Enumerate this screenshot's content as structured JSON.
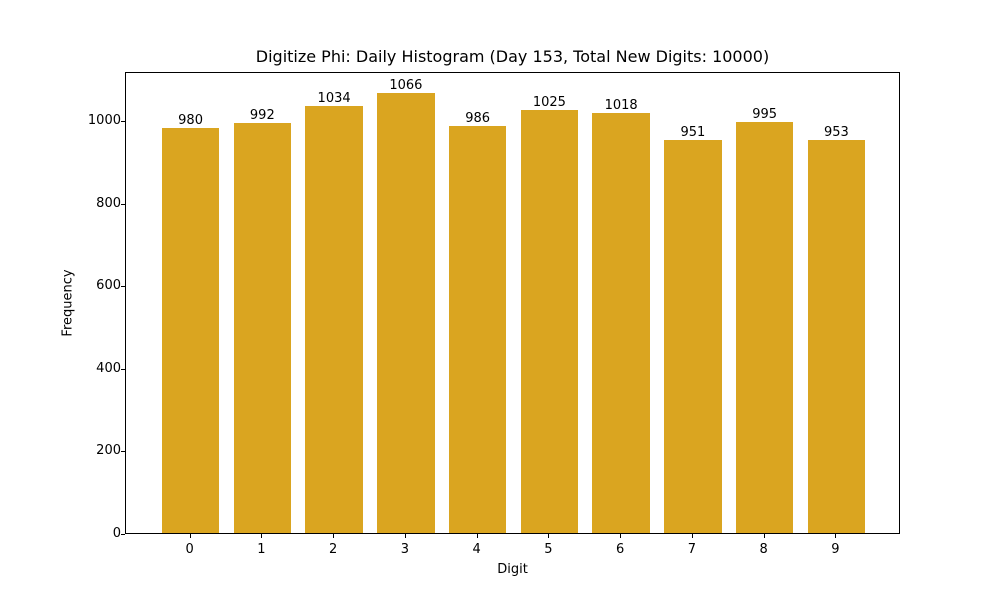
{
  "chart_data": {
    "type": "bar",
    "title": "Digitize Phi: Daily Histogram (Day 153, Total New Digits: 10000)",
    "xlabel": "Digit",
    "ylabel": "Frequency",
    "categories": [
      "0",
      "1",
      "2",
      "3",
      "4",
      "5",
      "6",
      "7",
      "8",
      "9"
    ],
    "values": [
      980,
      992,
      1034,
      1066,
      986,
      1025,
      1018,
      951,
      995,
      953
    ],
    "data_labels": [
      "980",
      "992",
      "1034",
      "1066",
      "986",
      "1025",
      "1018",
      "951",
      "995",
      "953"
    ],
    "yticks": [
      0,
      200,
      400,
      600,
      800,
      1000
    ],
    "ytick_labels": [
      "0",
      "200",
      "400",
      "600",
      "800",
      "1000"
    ],
    "ylim": [
      0,
      1119
    ],
    "xlim": [
      -0.9,
      9.9
    ],
    "bar_color": "#DAA520",
    "grid": false,
    "legend": null
  }
}
